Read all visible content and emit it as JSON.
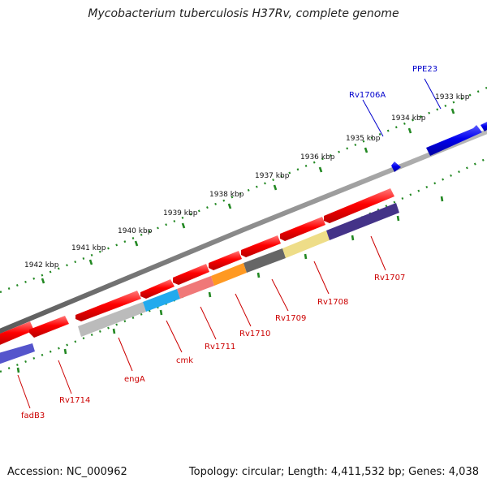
{
  "title": "Mycobacterium tuberculosis H37Rv, complete genome",
  "footer": {
    "accession": "Accession: NC_000962",
    "topology": "Topology: circular; Length: 4,411,532 bp; Genes: 4,038"
  },
  "scale_labels": [
    "1942 kbp",
    "1941 kbp",
    "1940 kbp",
    "1939 kbp",
    "1938 kbp",
    "1937 kbp",
    "1936 kbp",
    "1935 kbp",
    "1934 kbp",
    "1933 kbp"
  ],
  "gene_labels": {
    "ppe23": "PPE23",
    "rv1706a": "Rv1706A",
    "rv1707": "Rv1707",
    "rv1708": "Rv1708",
    "rv1709": "Rv1709",
    "rv1710": "Rv1710",
    "rv1711": "Rv1711",
    "cmk": "cmk",
    "enga": "engA",
    "rv1714": "Rv1714",
    "fadb3": "fadB3"
  },
  "colors": {
    "forward_label": "#0000cc",
    "reverse_label": "#cc0000",
    "forward_gene": "#0000ee",
    "reverse_gene": "#ee1111",
    "backbone": "#808080",
    "ticks": "#228822"
  },
  "icons": {
    "gene-arrow": "arrow polygon"
  }
}
